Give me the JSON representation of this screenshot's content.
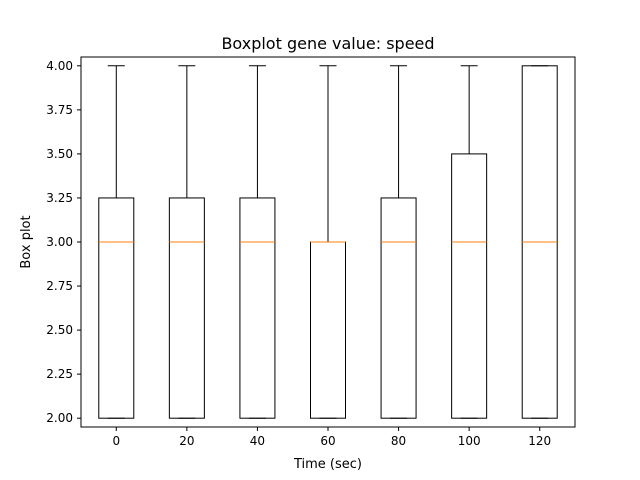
{
  "chart_data": {
    "type": "boxplot",
    "title": "Boxplot gene value: speed",
    "xlabel": "Time (sec)",
    "ylabel": "Box plot",
    "ylim": [
      1.95,
      4.05
    ],
    "yticks": [
      "2.00",
      "2.25",
      "2.50",
      "2.75",
      "3.00",
      "3.25",
      "3.50",
      "3.75",
      "4.00"
    ],
    "categories": [
      "0",
      "20",
      "40",
      "60",
      "80",
      "100",
      "120"
    ],
    "boxes": [
      {
        "category": "0",
        "whisker_low": 2.0,
        "q1": 2.0,
        "median": 3.0,
        "q3": 3.25,
        "whisker_high": 4.0
      },
      {
        "category": "20",
        "whisker_low": 2.0,
        "q1": 2.0,
        "median": 3.0,
        "q3": 3.25,
        "whisker_high": 4.0
      },
      {
        "category": "40",
        "whisker_low": 2.0,
        "q1": 2.0,
        "median": 3.0,
        "q3": 3.25,
        "whisker_high": 4.0
      },
      {
        "category": "60",
        "whisker_low": 2.0,
        "q1": 2.0,
        "median": 3.0,
        "q3": 3.0,
        "whisker_high": 4.0
      },
      {
        "category": "80",
        "whisker_low": 2.0,
        "q1": 2.0,
        "median": 3.0,
        "q3": 3.25,
        "whisker_high": 4.0
      },
      {
        "category": "100",
        "whisker_low": 2.0,
        "q1": 2.0,
        "median": 3.0,
        "q3": 3.5,
        "whisker_high": 4.0
      },
      {
        "category": "120",
        "whisker_low": 2.0,
        "q1": 2.0,
        "median": 3.0,
        "q3": 4.0,
        "whisker_high": 4.0
      }
    ],
    "colors": {
      "box": "#000000",
      "median": "#ff7f0e"
    },
    "grid": false,
    "legend": "none"
  }
}
